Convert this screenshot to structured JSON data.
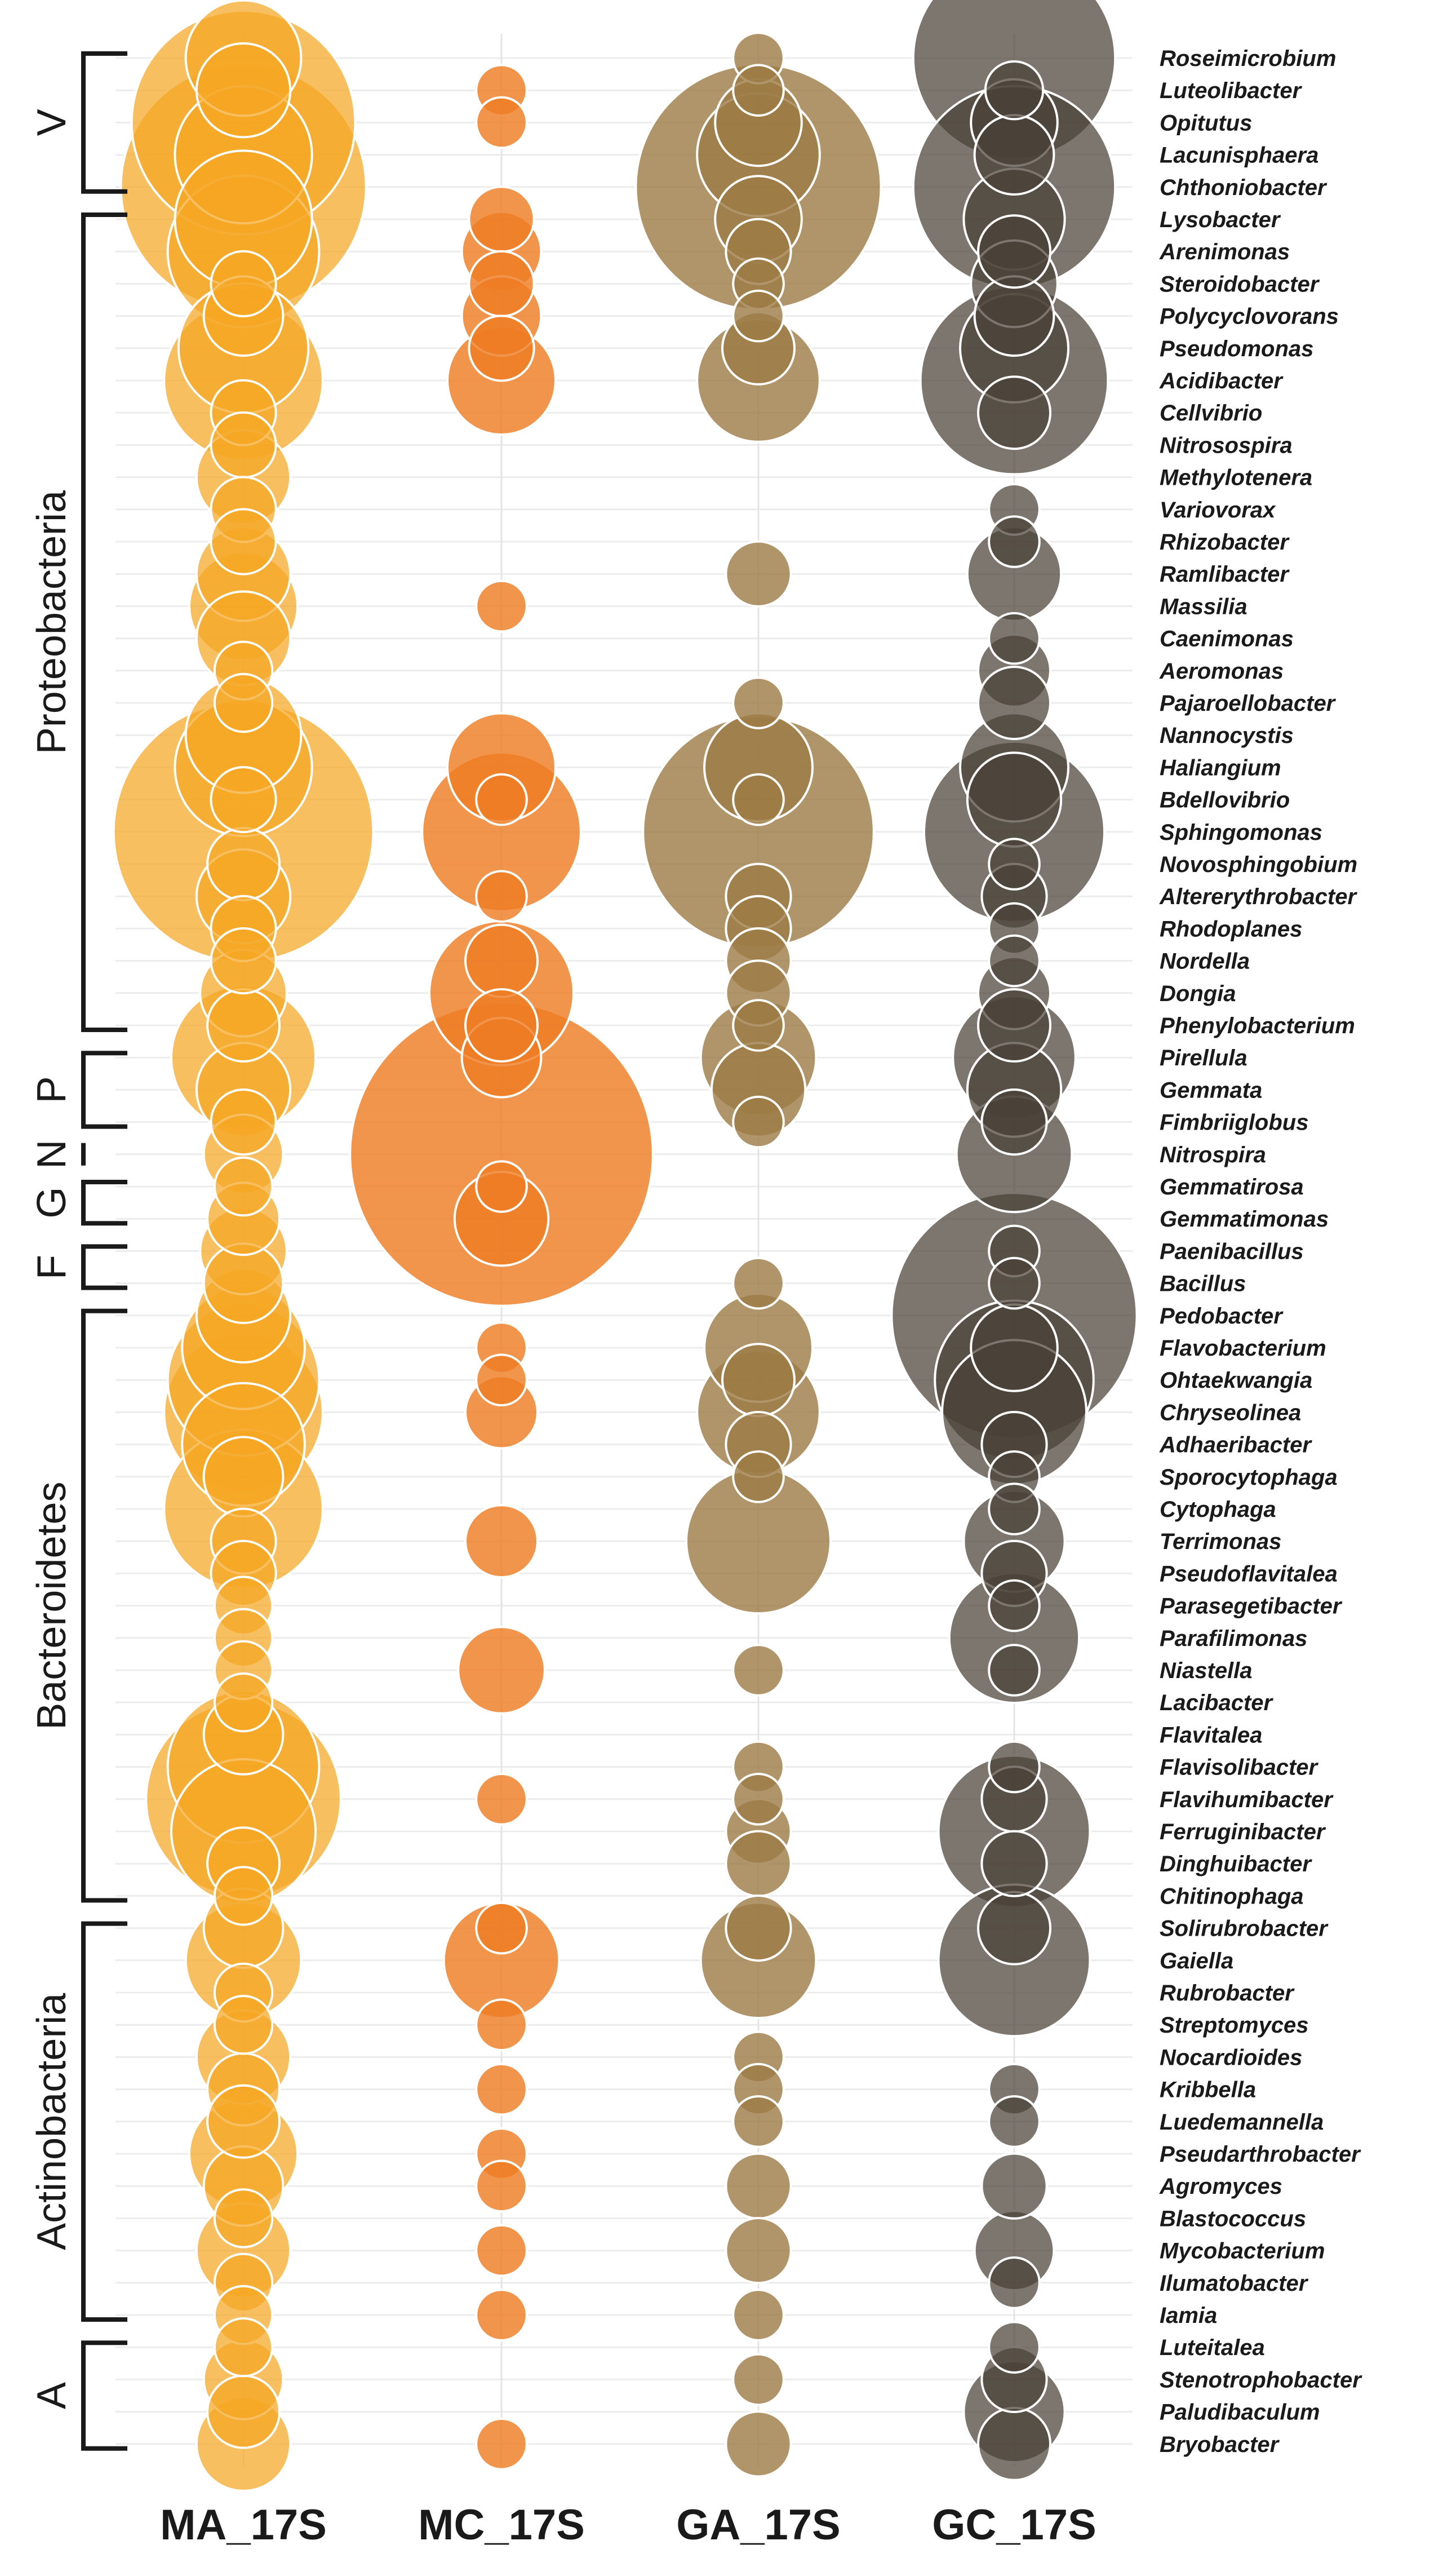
{
  "chart_data": {
    "type": "bubble",
    "title": "",
    "samples": [
      {
        "name": "MA_17S",
        "color": "#F5A623",
        "opacity": 0.72
      },
      {
        "name": "MC_17S",
        "color": "#EE7C25",
        "opacity": 0.82
      },
      {
        "name": "GA_17S",
        "color": "#9C7B45",
        "opacity": 0.8
      },
      {
        "name": "GC_17S",
        "color": "#4A4138",
        "opacity": 0.72
      }
    ],
    "genera": [
      "Roseimicrobium",
      "Luteolibacter",
      "Opitutus",
      "Lacunisphaera",
      "Chthoniobacter",
      "Lysobacter",
      "Arenimonas",
      "Steroidobacter",
      "Polycyclovorans",
      "Pseudomonas",
      "Acidibacter",
      "Cellvibrio",
      "Nitrosospira",
      "Methylotenera",
      "Variovorax",
      "Rhizobacter",
      "Ramlibacter",
      "Massilia",
      "Caenimonas",
      "Aeromonas",
      "Pajaroellobacter",
      "Nannocystis",
      "Haliangium",
      "Bdellovibrio",
      "Sphingomonas",
      "Novosphingobium",
      "Altererythrobacter",
      "Rhodoplanes",
      "Nordella",
      "Dongia",
      "Phenylobacterium",
      "Pirellula",
      "Gemmata",
      "Fimbriiglobus",
      "Nitrospira",
      "Gemmatirosa",
      "Gemmatimonas",
      "Paenibacillus",
      "Bacillus",
      "Pedobacter",
      "Flavobacterium",
      "Ohtaekwangia",
      "Chryseolinea",
      "Adhaeribacter",
      "Sporocytophaga",
      "Cytophaga",
      "Terrimonas",
      "Pseudoflavitalea",
      "Parasegetibacter",
      "Parafilimonas",
      "Niastella",
      "Lacibacter",
      "Flavitalea",
      "Flavisolibacter",
      "Flavihumibacter",
      "Ferruginibacter",
      "Dinghuibacter",
      "Chitinophaga",
      "Solirubrobacter",
      "Gaiella",
      "Rubrobacter",
      "Streptomyces",
      "Nocardioides",
      "Kribbella",
      "Luedemannella",
      "Pseudarthrobacter",
      "Agromyces",
      "Blastococcus",
      "Mycobacterium",
      "Ilumatobacter",
      "Iamia",
      "Luteitalea",
      "Stenotrophobacter",
      "Paludibaculum",
      "Bryobacter"
    ],
    "abundance": {
      "MA_17S": [
        16,
        13,
        31,
        19,
        34,
        19,
        21,
        9,
        11,
        18,
        22,
        9,
        9,
        13,
        9,
        9,
        13,
        15,
        13,
        8,
        8,
        16,
        19,
        9,
        36,
        10,
        13,
        9,
        9,
        12,
        10,
        20,
        13,
        9,
        11,
        8,
        10,
        12,
        11,
        13,
        17,
        21,
        22,
        17,
        11,
        22,
        9,
        9,
        8,
        8,
        8,
        8,
        11,
        21,
        27,
        20,
        10,
        8,
        11,
        16,
        8,
        8,
        13,
        10,
        10,
        15,
        11,
        8,
        13,
        8,
        8,
        8,
        11,
        10,
        13
      ],
      "MC_17S": [
        0,
        7,
        7,
        0,
        0,
        9,
        11,
        9,
        11,
        9,
        15,
        0,
        0,
        0,
        0,
        0,
        0,
        7,
        0,
        0,
        0,
        0,
        15,
        7,
        22,
        0,
        7,
        0,
        10,
        20,
        10,
        11,
        0,
        0,
        42,
        7,
        13,
        0,
        0,
        0,
        7,
        7,
        10,
        0,
        0,
        0,
        10,
        0,
        0,
        0,
        12,
        0,
        0,
        0,
        7,
        0,
        0,
        0,
        7,
        16,
        0,
        7,
        0,
        7,
        0,
        7,
        7,
        0,
        7,
        0,
        7,
        0,
        0,
        0,
        7
      ],
      "GA_17S": [
        7,
        7,
        12,
        17,
        34,
        12,
        9,
        7,
        7,
        10,
        17,
        0,
        0,
        0,
        0,
        0,
        9,
        0,
        0,
        0,
        7,
        0,
        15,
        7,
        32,
        0,
        9,
        9,
        9,
        9,
        7,
        16,
        13,
        7,
        0,
        0,
        0,
        0,
        7,
        0,
        15,
        10,
        17,
        9,
        7,
        0,
        20,
        0,
        0,
        0,
        7,
        0,
        0,
        7,
        7,
        9,
        9,
        0,
        9,
        16,
        0,
        0,
        7,
        7,
        7,
        0,
        9,
        0,
        9,
        0,
        7,
        0,
        7,
        0,
        9
      ],
      "GC_17S": [
        28,
        8,
        12,
        11,
        28,
        14,
        10,
        12,
        11,
        15,
        26,
        10,
        0,
        0,
        7,
        7,
        13,
        0,
        7,
        10,
        10,
        0,
        15,
        13,
        25,
        7,
        9,
        7,
        7,
        10,
        10,
        17,
        13,
        9,
        16,
        0,
        0,
        7,
        7,
        34,
        12,
        22,
        20,
        9,
        7,
        7,
        14,
        9,
        7,
        18,
        7,
        0,
        0,
        7,
        9,
        21,
        9,
        0,
        10,
        21,
        0,
        0,
        0,
        7,
        7,
        0,
        9,
        0,
        11,
        7,
        0,
        7,
        9,
        14,
        10
      ]
    },
    "groups": [
      {
        "label": "V",
        "from": "Roseimicrobium",
        "to": "Chthoniobacter"
      },
      {
        "label": "Proteobacteria",
        "from": "Lysobacter",
        "to": "Phenylobacterium"
      },
      {
        "label": "P",
        "from": "Pirellula",
        "to": "Fimbriiglobus"
      },
      {
        "label": "N",
        "from": "Nitrospira",
        "to": "Nitrospira"
      },
      {
        "label": "G",
        "from": "Gemmatirosa",
        "to": "Gemmatimonas"
      },
      {
        "label": "F",
        "from": "Paenibacillus",
        "to": "Bacillus"
      },
      {
        "label": "Bacteroidetes",
        "from": "Pedobacter",
        "to": "Chitinophaga"
      },
      {
        "label": "Actinobacteria",
        "from": "Solirubrobacter",
        "to": "Iamia"
      },
      {
        "label": "A",
        "from": "Luteitalea",
        "to": "Bryobacter"
      }
    ],
    "xlabel": "",
    "ylabel": "",
    "grid": true
  }
}
